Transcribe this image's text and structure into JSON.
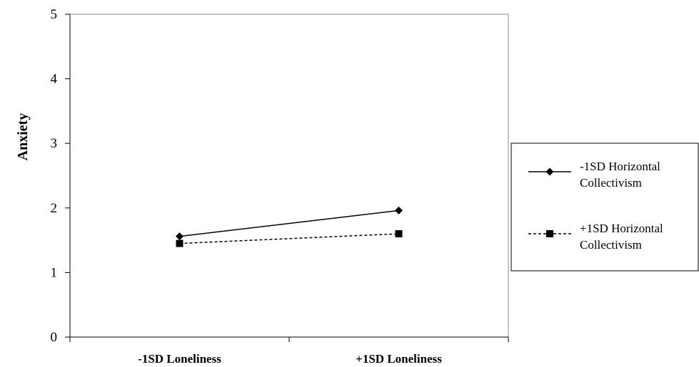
{
  "chart_data": {
    "type": "line",
    "categories": [
      "-1SD Loneliness",
      "+1SD Loneliness"
    ],
    "series": [
      {
        "name_line1": "-1SD Horizontal",
        "name_line2": "Collectivism",
        "values": [
          1.56,
          1.96
        ],
        "marker": "diamond",
        "dash": "solid",
        "color": "#000000"
      },
      {
        "name_line1": "+1SD Horizontal",
        "name_line2": "Collectivism",
        "values": [
          1.45,
          1.6
        ],
        "marker": "square",
        "dash": "dashed",
        "color": "#000000"
      }
    ],
    "ylabel": "Anxiety",
    "ylim": [
      0,
      5
    ],
    "yticks": [
      "0",
      "1",
      "2",
      "3",
      "4",
      "5"
    ],
    "grid": false,
    "legend_position": "right"
  }
}
